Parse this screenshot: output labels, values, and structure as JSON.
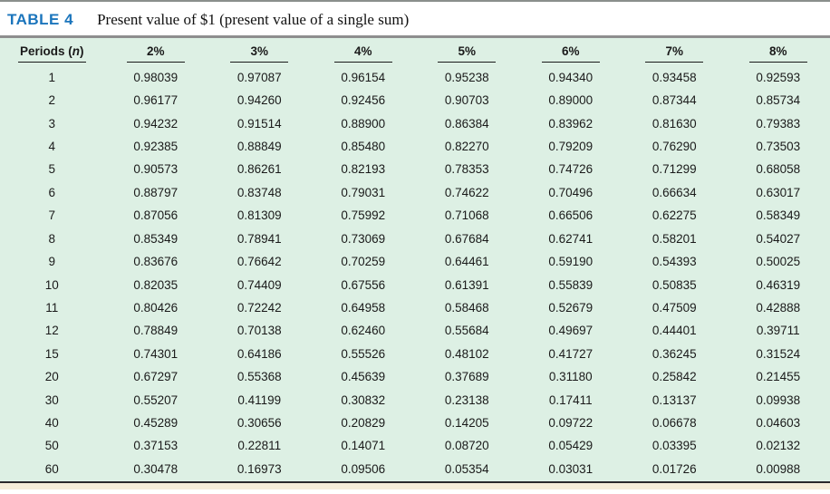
{
  "title": {
    "label": "TABLE 4",
    "description": "Present value of $1 (present value of a single sum)"
  },
  "table": {
    "period_header": {
      "prefix": "Periods (",
      "italic": "n",
      "suffix": ")"
    },
    "rate_headers": [
      "2%",
      "3%",
      "4%",
      "5%",
      "6%",
      "7%",
      "8%"
    ],
    "rows": [
      {
        "period": "1",
        "values": [
          "0.98039",
          "0.97087",
          "0.96154",
          "0.95238",
          "0.94340",
          "0.93458",
          "0.92593"
        ]
      },
      {
        "period": "2",
        "values": [
          "0.96177",
          "0.94260",
          "0.92456",
          "0.90703",
          "0.89000",
          "0.87344",
          "0.85734"
        ]
      },
      {
        "period": "3",
        "values": [
          "0.94232",
          "0.91514",
          "0.88900",
          "0.86384",
          "0.83962",
          "0.81630",
          "0.79383"
        ]
      },
      {
        "period": "4",
        "values": [
          "0.92385",
          "0.88849",
          "0.85480",
          "0.82270",
          "0.79209",
          "0.76290",
          "0.73503"
        ]
      },
      {
        "period": "5",
        "values": [
          "0.90573",
          "0.86261",
          "0.82193",
          "0.78353",
          "0.74726",
          "0.71299",
          "0.68058"
        ]
      },
      {
        "period": "6",
        "values": [
          "0.88797",
          "0.83748",
          "0.79031",
          "0.74622",
          "0.70496",
          "0.66634",
          "0.63017"
        ]
      },
      {
        "period": "7",
        "values": [
          "0.87056",
          "0.81309",
          "0.75992",
          "0.71068",
          "0.66506",
          "0.62275",
          "0.58349"
        ]
      },
      {
        "period": "8",
        "values": [
          "0.85349",
          "0.78941",
          "0.73069",
          "0.67684",
          "0.62741",
          "0.58201",
          "0.54027"
        ]
      },
      {
        "period": "9",
        "values": [
          "0.83676",
          "0.76642",
          "0.70259",
          "0.64461",
          "0.59190",
          "0.54393",
          "0.50025"
        ]
      },
      {
        "period": "10",
        "values": [
          "0.82035",
          "0.74409",
          "0.67556",
          "0.61391",
          "0.55839",
          "0.50835",
          "0.46319"
        ]
      },
      {
        "period": "11",
        "values": [
          "0.80426",
          "0.72242",
          "0.64958",
          "0.58468",
          "0.52679",
          "0.47509",
          "0.42888"
        ]
      },
      {
        "period": "12",
        "values": [
          "0.78849",
          "0.70138",
          "0.62460",
          "0.55684",
          "0.49697",
          "0.44401",
          "0.39711"
        ]
      },
      {
        "period": "15",
        "values": [
          "0.74301",
          "0.64186",
          "0.55526",
          "0.48102",
          "0.41727",
          "0.36245",
          "0.31524"
        ]
      },
      {
        "period": "20",
        "values": [
          "0.67297",
          "0.55368",
          "0.45639",
          "0.37689",
          "0.31180",
          "0.25842",
          "0.21455"
        ]
      },
      {
        "period": "30",
        "values": [
          "0.55207",
          "0.41199",
          "0.30832",
          "0.23138",
          "0.17411",
          "0.13137",
          "0.09938"
        ]
      },
      {
        "period": "40",
        "values": [
          "0.45289",
          "0.30656",
          "0.20829",
          "0.14205",
          "0.09722",
          "0.06678",
          "0.04603"
        ]
      },
      {
        "period": "50",
        "values": [
          "0.37153",
          "0.22811",
          "0.14071",
          "0.08720",
          "0.05429",
          "0.03395",
          "0.02132"
        ]
      },
      {
        "period": "60",
        "values": [
          "0.30478",
          "0.16973",
          "0.09506",
          "0.05354",
          "0.03031",
          "0.01726",
          "0.00988"
        ]
      }
    ]
  },
  "colors": {
    "accent_blue": "#1b75bc",
    "table_bg": "#ddf0e4",
    "bottom_strip": "#f6eed8",
    "rule_gray": "#8e8e8e"
  }
}
